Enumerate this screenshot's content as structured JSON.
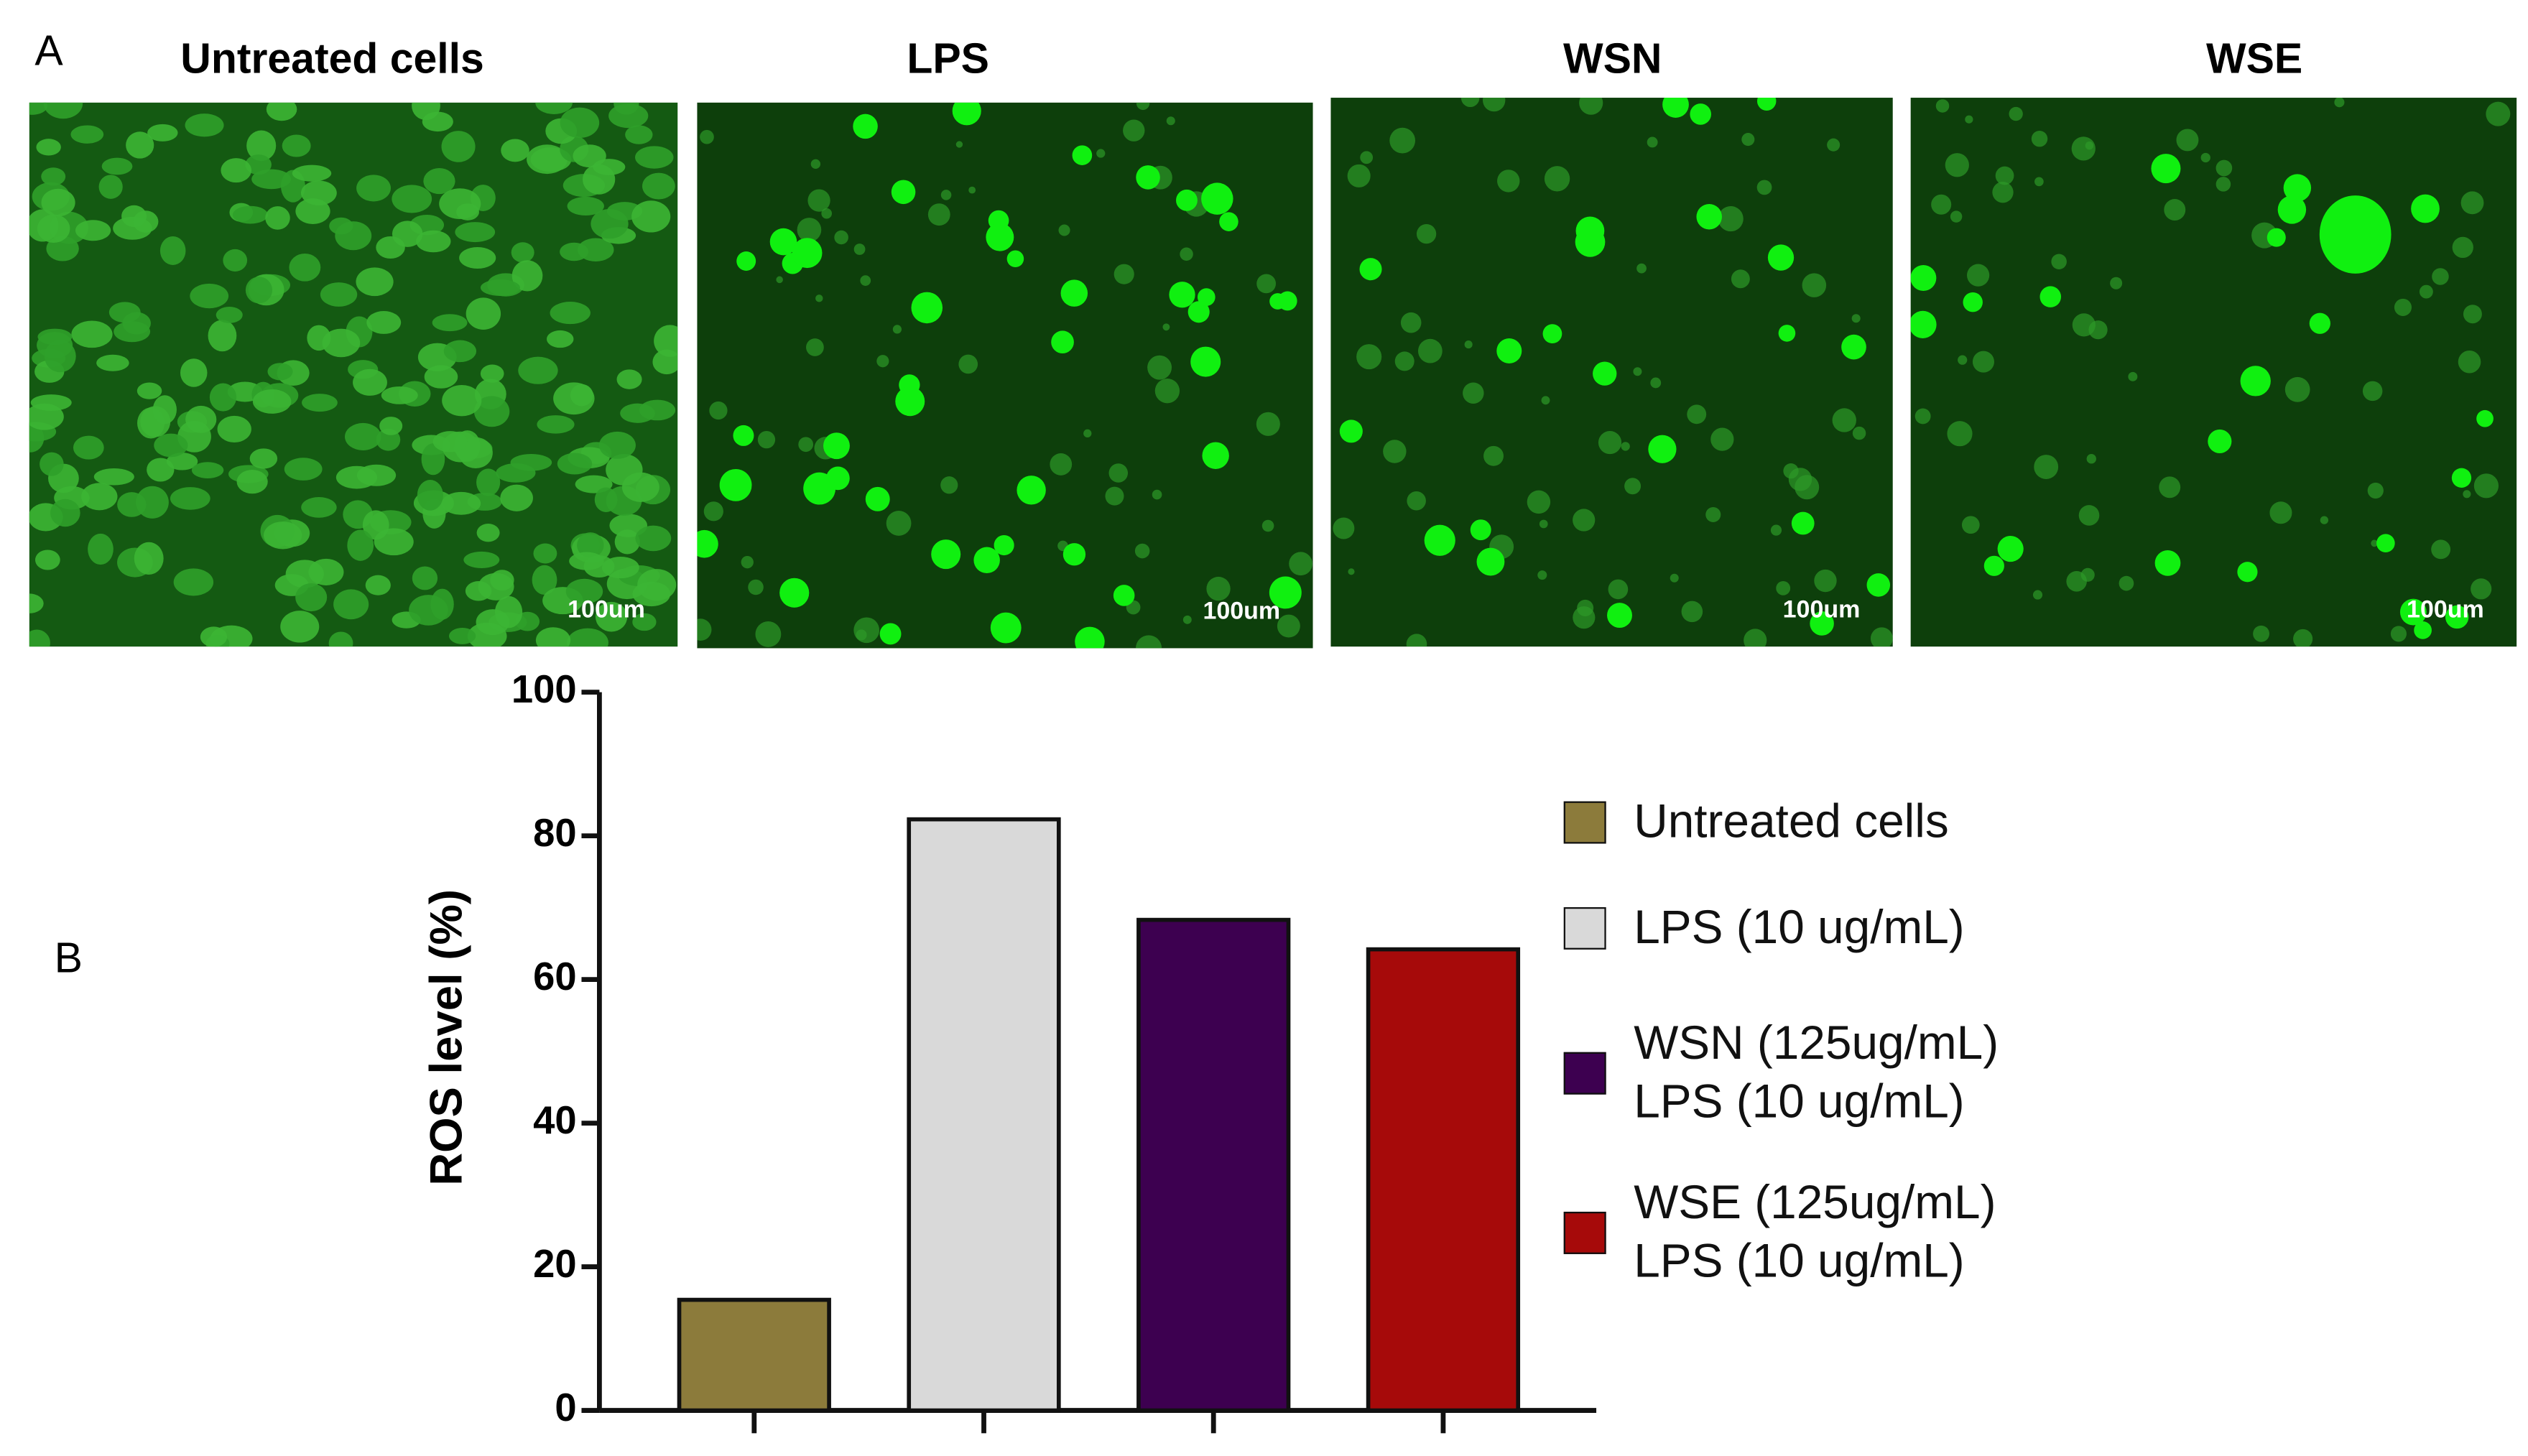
{
  "figure": {
    "panel_a": "A",
    "panel_b": "B",
    "images": [
      {
        "title": "Untreated cells",
        "scale": "100um"
      },
      {
        "title": "LPS",
        "scale": "100um"
      },
      {
        "title": "WSN",
        "scale": "100um"
      },
      {
        "title": "WSE",
        "scale": "100um"
      }
    ]
  },
  "chart_data": {
    "type": "bar",
    "y_label": "ROS level (%)",
    "categories": [
      "Untreated cells",
      "LPS (10 ug/mL)",
      "WSN (125ug/mL)\nLPS (10 ug/mL)",
      "WSE (125ug/mL)\nLPS (10 ug/mL)"
    ],
    "values": [
      15.4,
      82.3,
      68.3,
      64.2
    ],
    "colors": [
      "#8c7b3b",
      "#d9d9d9",
      "#3d0050",
      "#a60a0a"
    ],
    "ylim": [
      0,
      100
    ],
    "yticks": [
      0,
      20,
      40,
      60,
      80,
      100
    ],
    "grid": false,
    "legend": "right"
  }
}
